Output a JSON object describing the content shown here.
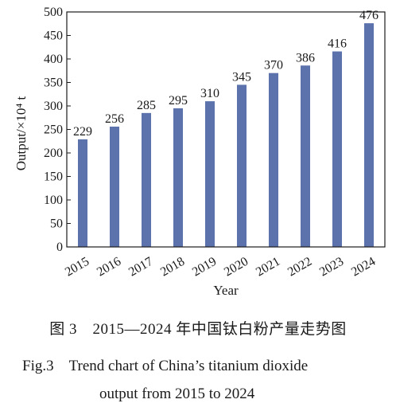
{
  "chart_data": {
    "type": "bar",
    "categories": [
      "2015",
      "2016",
      "2017",
      "2018",
      "2019",
      "2020",
      "2021",
      "2022",
      "2023",
      "2024"
    ],
    "values": [
      229,
      256,
      285,
      295,
      310,
      345,
      370,
      386,
      416,
      476
    ],
    "data_labels": [
      "229",
      "256",
      "285",
      "295",
      "310",
      "345",
      "370",
      "386",
      "416",
      "476"
    ],
    "xlabel": "Year",
    "ylabel": "Output/×10⁴ t",
    "ylim": [
      0,
      500
    ],
    "yticks": [
      0,
      50,
      100,
      150,
      200,
      250,
      300,
      350,
      400,
      450,
      500
    ],
    "bar_color": "#5b72ad",
    "grid": false,
    "legend": "none"
  },
  "caption": {
    "cn": "图 3　2015—2024 年中国钛白粉产量走势图",
    "en_line1": "Fig.3　Trend chart of China’s titanium dioxide",
    "en_line2": "output from 2015 to 2024"
  }
}
